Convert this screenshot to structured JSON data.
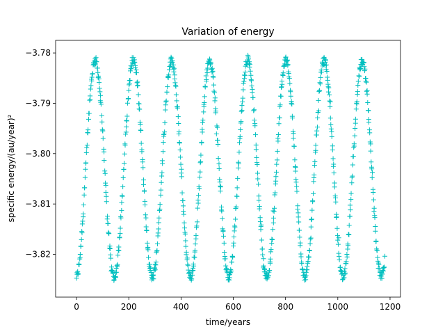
{
  "chart_data": {
    "type": "scatter",
    "title": "Variation of energy",
    "xlabel": "time/years",
    "ylabel": "specific energy/(au/year)²",
    "xlim": [
      -80,
      1240
    ],
    "ylim": [
      -3.8285,
      -3.7775
    ],
    "xticks": [
      0,
      200,
      400,
      600,
      800,
      1000,
      1200
    ],
    "yticks": [
      -3.82,
      -3.81,
      -3.8,
      -3.79,
      -3.78
    ],
    "ytick_labels": [
      "−3.82",
      "−3.81",
      "−3.80",
      "−3.79",
      "−3.78"
    ],
    "grid": false,
    "marker": "+",
    "color": "#00bfbf",
    "series": [
      {
        "oscillation": {
          "time_start": 0,
          "time_end": 1180,
          "period_years": 146,
          "min_energy": -3.8245,
          "max_energy": -3.7815,
          "n_points": 900
        }
      }
    ]
  }
}
